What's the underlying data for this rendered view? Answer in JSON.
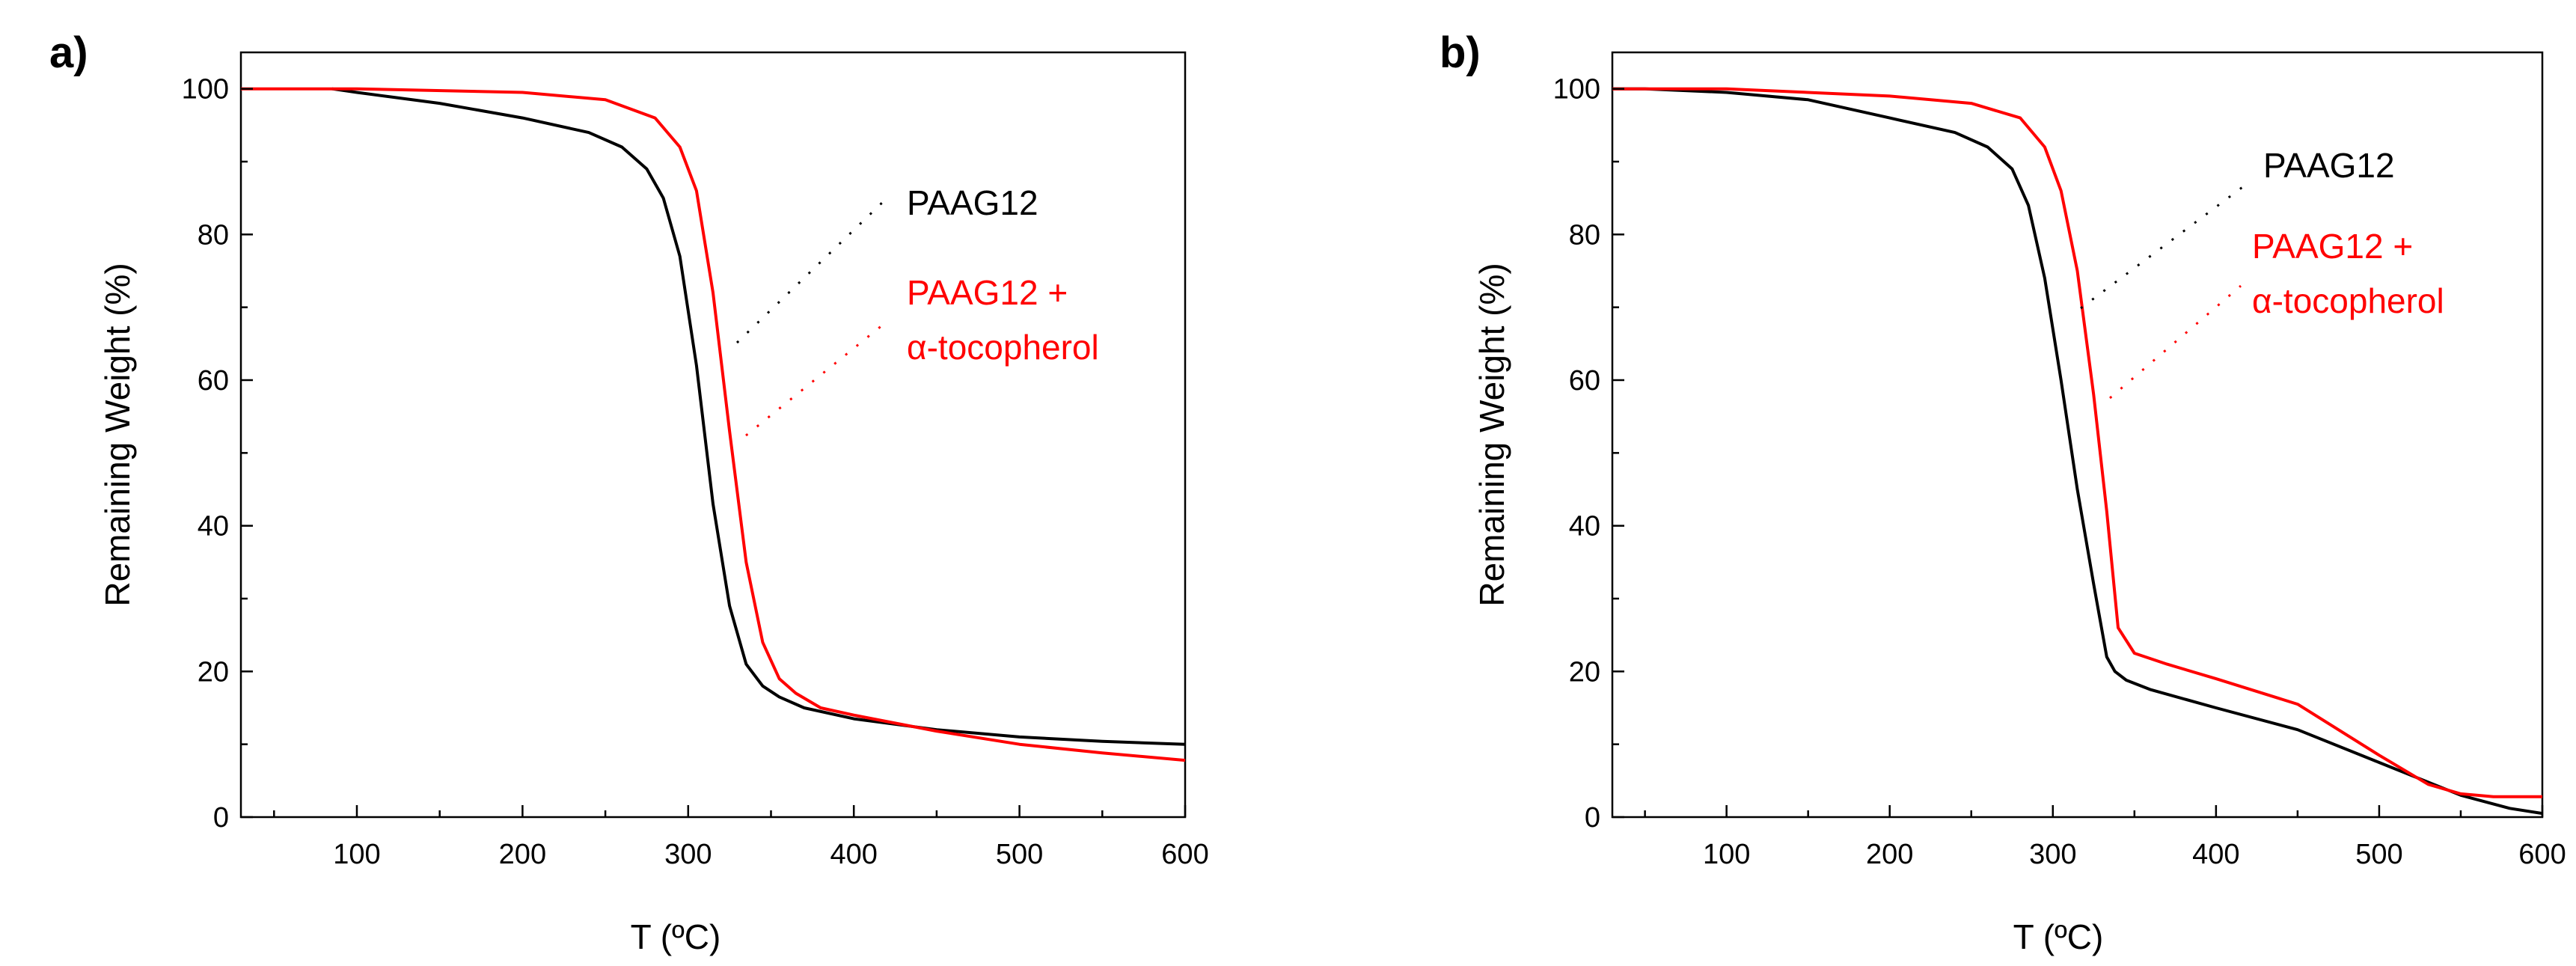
{
  "chart_data": [
    {
      "type": "line",
      "panel_label": "a)",
      "xlabel": "T (ºC)",
      "ylabel": "Remaining Weight (%)",
      "xlim": [
        30,
        600
      ],
      "ylim": [
        0,
        105
      ],
      "xticks": [
        100,
        200,
        300,
        400,
        500,
        600
      ],
      "yticks": [
        0,
        20,
        40,
        60,
        80,
        100
      ],
      "grid": false,
      "series": [
        {
          "name": "PAAG12",
          "color": "#000000",
          "x": [
            85,
            100,
            150,
            200,
            240,
            260,
            275,
            285,
            295,
            305,
            315,
            325,
            335,
            345,
            355,
            370,
            400,
            450,
            500,
            550,
            600
          ],
          "y": [
            100,
            99.5,
            98,
            96,
            94,
            92,
            89,
            85,
            77,
            62,
            43,
            29,
            21,
            18,
            16.5,
            15,
            13.5,
            12,
            11,
            10.4,
            10
          ]
        },
        {
          "name": "PAAG12 + α-tocopherol",
          "color": "#ff0000",
          "x": [
            30,
            100,
            200,
            250,
            280,
            295,
            305,
            315,
            325,
            335,
            345,
            355,
            365,
            380,
            400,
            450,
            500,
            550,
            600
          ],
          "y": [
            100,
            100,
            99.5,
            98.5,
            96,
            92,
            86,
            72,
            53,
            35,
            24,
            19,
            17,
            15,
            14,
            11.8,
            10,
            8.8,
            7.8
          ]
        }
      ],
      "legend": [
        {
          "text": "PAAG12",
          "color": "#000000"
        },
        {
          "text": "PAAG12 +",
          "color": "#ff0000"
        },
        {
          "text": "α-tocopherol",
          "color": "#ff0000"
        }
      ]
    },
    {
      "type": "line",
      "panel_label": "b)",
      "xlabel": "T (ºC)",
      "ylabel": "Remaining Weight (%)",
      "xlim": [
        30,
        600
      ],
      "ylim": [
        0,
        105
      ],
      "xticks": [
        100,
        200,
        300,
        400,
        500,
        600
      ],
      "yticks": [
        0,
        20,
        40,
        60,
        80,
        100
      ],
      "grid": false,
      "series": [
        {
          "name": "PAAG12",
          "color": "#000000",
          "x": [
            30,
            50,
            100,
            150,
            200,
            240,
            260,
            275,
            285,
            295,
            305,
            315,
            325,
            333,
            338,
            345,
            360,
            400,
            450,
            500,
            550,
            580,
            600
          ],
          "y": [
            100,
            100,
            99.5,
            98.5,
            96,
            94,
            92,
            89,
            84,
            74,
            60,
            45,
            32,
            22,
            20,
            18.8,
            17.5,
            15,
            12,
            7.5,
            3,
            1.2,
            0.5
          ]
        },
        {
          "name": "PAAG12 + α-tocopherol",
          "color": "#ff0000",
          "x": [
            30,
            100,
            200,
            250,
            280,
            295,
            305,
            315,
            325,
            333,
            340,
            350,
            370,
            400,
            450,
            500,
            530,
            550,
            570,
            600
          ],
          "y": [
            100,
            100,
            99,
            98,
            96,
            92,
            86,
            75,
            58,
            42,
            26,
            22.5,
            21,
            19,
            15.5,
            8.5,
            4.5,
            3.2,
            2.8,
            2.8
          ]
        }
      ],
      "legend": [
        {
          "text": "PAAG12",
          "color": "#000000"
        },
        {
          "text": "PAAG12 +",
          "color": "#ff0000"
        },
        {
          "text": "α-tocopherol",
          "color": "#ff0000"
        }
      ]
    }
  ]
}
